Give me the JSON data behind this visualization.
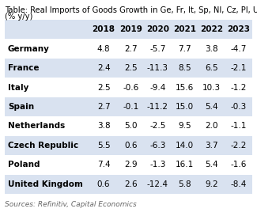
{
  "title_line1": "Table: Real Imports of Goods Growth in Ge, Fr, It, Sp, Nl, Cz, Pl, UK",
  "title_line2": "(% y/y)",
  "columns": [
    "2018",
    "2019",
    "2020",
    "2021",
    "2022",
    "2023"
  ],
  "rows": [
    [
      "Germany",
      "4.8",
      "2.7",
      "-5.7",
      "7.7",
      "3.8",
      "-4.7"
    ],
    [
      "France",
      "2.4",
      "2.5",
      "-11.3",
      "8.5",
      "6.5",
      "-2.1"
    ],
    [
      "Italy",
      "2.5",
      "-0.6",
      "-9.4",
      "15.6",
      "10.3",
      "-1.2"
    ],
    [
      "Spain",
      "2.7",
      "-0.1",
      "-11.2",
      "15.0",
      "5.4",
      "-0.3"
    ],
    [
      "Netherlands",
      "3.8",
      "5.0",
      "-2.5",
      "9.5",
      "2.0",
      "-1.1"
    ],
    [
      "Czech Republic",
      "5.5",
      "0.6",
      "-6.3",
      "14.0",
      "3.7",
      "-2.2"
    ],
    [
      "Poland",
      "7.4",
      "2.9",
      "-1.3",
      "16.1",
      "5.4",
      "-1.6"
    ],
    [
      "United Kingdom",
      "0.6",
      "2.6",
      "-12.4",
      "5.8",
      "9.2",
      "-8.4"
    ]
  ],
  "header_bg": "#d9e2f0",
  "row_bg_even": "#ffffff",
  "row_bg_odd": "#d9e2f0",
  "source_text": "Sources: Refinitiv, Capital Economics",
  "fig_bg": "#ffffff",
  "title_fontsize": 7.2,
  "header_fontsize": 7.5,
  "cell_fontsize": 7.5,
  "source_fontsize": 6.5
}
